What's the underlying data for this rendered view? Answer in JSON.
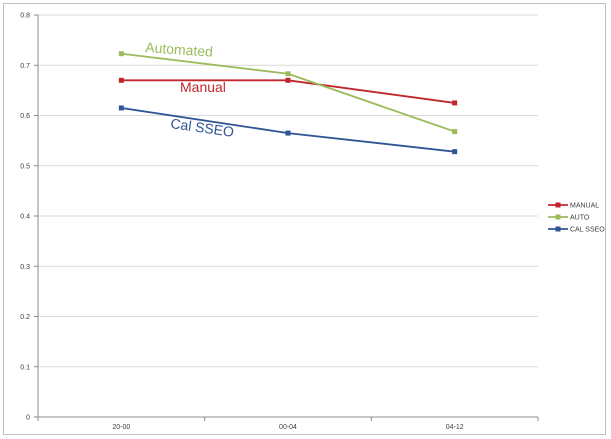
{
  "chart_data": {
    "type": "line",
    "categories": [
      "20-00",
      "00-04",
      "04-12"
    ],
    "ylim": [
      0,
      0.8
    ],
    "yticks": [
      "0",
      "0.1",
      "0.2",
      "0.3",
      "0.4",
      "0.5",
      "0.6",
      "0.7",
      "0.8"
    ],
    "grid": "horizontal",
    "legend_position": "right",
    "series": [
      {
        "name": "MANUAL",
        "color": "#c0272d",
        "values": [
          0.67,
          0.67,
          0.625
        ]
      },
      {
        "name": "AUTO",
        "color": "#9bbb59",
        "values": [
          0.723,
          0.683,
          0.568
        ]
      },
      {
        "name": "CAL SSEO",
        "color": "#2f5597",
        "values": [
          0.615,
          0.565,
          0.528
        ]
      }
    ],
    "annotations": [
      {
        "text": "Automated",
        "color": "#9bbb59"
      },
      {
        "text": "Manual",
        "color": "#c0272d"
      },
      {
        "text": "Cal SSEO",
        "color": "#2f5597"
      }
    ]
  }
}
